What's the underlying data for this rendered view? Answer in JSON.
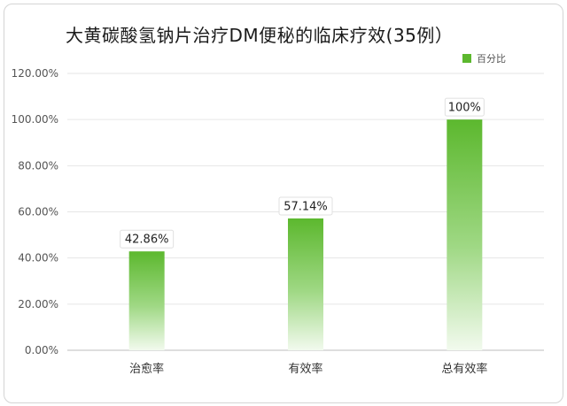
{
  "chart_data": {
    "type": "bar",
    "title": "大黄碳酸氢钠片治疗DM便秘的临床疗效(35例）",
    "categories": [
      "治愈率",
      "有效率",
      "总有效率"
    ],
    "series": [
      {
        "name": "百分比",
        "values": [
          42.86,
          57.14,
          100
        ]
      }
    ],
    "data_labels": [
      "42.86%",
      "57.14%",
      "100%"
    ],
    "yticks": [
      "0.00%",
      "20.00%",
      "40.00%",
      "60.00%",
      "80.00%",
      "100.00%",
      "120.00%"
    ],
    "ylim": [
      0,
      120
    ],
    "grid": true,
    "legend_position": "top-right",
    "bar_color": "#5cb82e"
  }
}
